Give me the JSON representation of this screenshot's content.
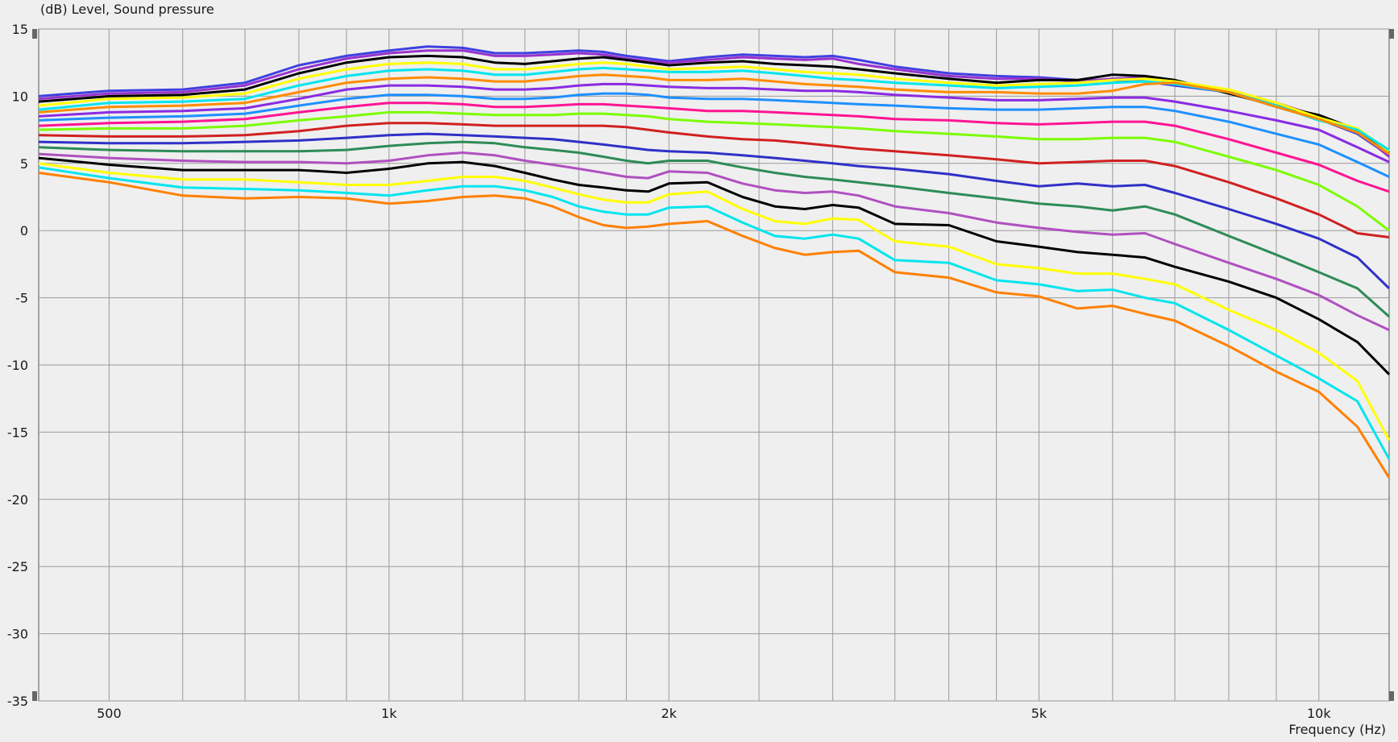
{
  "chart_data": {
    "type": "line",
    "ylabel": "(dB)  Level, Sound pressure",
    "xlabel": "Frequency  (Hz)",
    "x_scale": "log",
    "xlim": [
      420,
      11900
    ],
    "ylim": [
      -35,
      15
    ],
    "grid": true,
    "y_ticks": [
      15,
      10,
      5,
      0,
      -5,
      -10,
      -15,
      -20,
      -25,
      -30,
      -35
    ],
    "x_major_ticks": [
      {
        "value": 500,
        "label": "500"
      },
      {
        "value": 1000,
        "label": "1k"
      },
      {
        "value": 2000,
        "label": "2k"
      },
      {
        "value": 5000,
        "label": "5k"
      },
      {
        "value": 10000,
        "label": "10k"
      }
    ],
    "x_gridlines": [
      500,
      600,
      700,
      800,
      900,
      1000,
      1200,
      1400,
      1600,
      1800,
      2000,
      2500,
      3000,
      3500,
      4000,
      4500,
      5000,
      6000,
      7000,
      8000,
      9000,
      10000
    ],
    "x": [
      420,
      500,
      600,
      700,
      800,
      900,
      1000,
      1100,
      1200,
      1300,
      1400,
      1500,
      1600,
      1700,
      1800,
      1900,
      2000,
      2200,
      2400,
      2600,
      2800,
      3000,
      3200,
      3500,
      4000,
      4500,
      5000,
      5500,
      6000,
      6500,
      7000,
      8000,
      9000,
      10000,
      11000,
      11900
    ],
    "series": [
      {
        "color": "#4040e0",
        "values": [
          10,
          10.4,
          10.5,
          11,
          12.3,
          13,
          13.4,
          13.7,
          13.6,
          13.2,
          13.2,
          13.3,
          13.4,
          13.3,
          13,
          12.8,
          12.6,
          12.9,
          13.1,
          13,
          12.9,
          13,
          12.7,
          12.2,
          11.7,
          11.5,
          11.4,
          11.2,
          11.2,
          11.1,
          10.8,
          10.3,
          9.2,
          8.3,
          7.2,
          5.6
        ]
      },
      {
        "color": "#9932cc",
        "values": [
          9.8,
          10.2,
          10.3,
          10.8,
          12,
          12.8,
          13.2,
          13.4,
          13.4,
          13,
          13,
          13.1,
          13.2,
          13.1,
          12.8,
          12.6,
          12.5,
          12.7,
          12.9,
          12.8,
          12.7,
          12.8,
          12.4,
          12,
          11.5,
          11.3,
          11.3,
          11.1,
          11.3,
          11.4,
          11,
          10.3,
          9.5,
          8.5,
          7.4,
          5.5
        ]
      },
      {
        "color": "#000000",
        "values": [
          9.6,
          10,
          10.1,
          10.5,
          11.7,
          12.5,
          12.9,
          13,
          12.9,
          12.5,
          12.4,
          12.6,
          12.8,
          12.9,
          12.7,
          12.5,
          12.3,
          12.5,
          12.6,
          12.4,
          12.3,
          12.2,
          12,
          11.7,
          11.3,
          11,
          11.2,
          11.2,
          11.6,
          11.5,
          11.2,
          10.2,
          9.3,
          8.6,
          7.5,
          5.8
        ]
      },
      {
        "color": "#ffff00",
        "values": [
          9.3,
          9.8,
          9.9,
          10.2,
          11.3,
          12,
          12.4,
          12.5,
          12.4,
          12,
          12,
          12.2,
          12.4,
          12.5,
          12.4,
          12.2,
          12,
          12.1,
          12.2,
          12,
          11.8,
          11.7,
          11.6,
          11.3,
          11,
          10.8,
          10.9,
          11,
          11.2,
          11.3,
          11.1,
          10.5,
          9.5,
          8.4,
          7.6,
          5.9
        ]
      },
      {
        "color": "#00e5ee",
        "values": [
          9,
          9.5,
          9.6,
          9.8,
          10.8,
          11.5,
          11.9,
          12,
          11.9,
          11.6,
          11.6,
          11.8,
          12,
          12.1,
          12,
          11.9,
          11.8,
          11.8,
          11.9,
          11.7,
          11.5,
          11.3,
          11.2,
          11,
          10.8,
          10.6,
          10.7,
          10.8,
          11,
          11.1,
          10.9,
          10.3,
          9.3,
          8.2,
          7.5,
          6
        ]
      },
      {
        "color": "#ff8c00",
        "values": [
          8.8,
          9.2,
          9.3,
          9.5,
          10.3,
          11,
          11.3,
          11.4,
          11.3,
          11.1,
          11.1,
          11.3,
          11.5,
          11.6,
          11.5,
          11.4,
          11.2,
          11.2,
          11.3,
          11.1,
          10.9,
          10.8,
          10.7,
          10.5,
          10.3,
          10.3,
          10.2,
          10.2,
          10.4,
          10.9,
          11,
          10.3,
          9.2,
          8.3,
          7.3,
          5.7
        ]
      },
      {
        "color": "#8a2be2",
        "values": [
          8.5,
          8.8,
          8.9,
          9.1,
          9.8,
          10.5,
          10.8,
          10.8,
          10.7,
          10.5,
          10.5,
          10.6,
          10.8,
          10.9,
          10.9,
          10.8,
          10.7,
          10.6,
          10.6,
          10.5,
          10.4,
          10.4,
          10.3,
          10.1,
          9.9,
          9.7,
          9.7,
          9.8,
          9.9,
          9.9,
          9.6,
          8.9,
          8.2,
          7.5,
          6.2,
          5.1
        ]
      },
      {
        "color": "#1e90ff",
        "values": [
          8.2,
          8.4,
          8.5,
          8.7,
          9.3,
          9.8,
          10.1,
          10.1,
          10,
          9.8,
          9.8,
          9.9,
          10.1,
          10.2,
          10.2,
          10.1,
          9.9,
          9.8,
          9.8,
          9.7,
          9.6,
          9.5,
          9.4,
          9.3,
          9.1,
          9,
          9,
          9.1,
          9.2,
          9.2,
          8.9,
          8.1,
          7.2,
          6.4,
          5.1,
          4
        ]
      },
      {
        "color": "#ff1493",
        "values": [
          7.8,
          8,
          8.1,
          8.3,
          8.8,
          9.2,
          9.5,
          9.5,
          9.4,
          9.2,
          9.2,
          9.3,
          9.4,
          9.4,
          9.3,
          9.2,
          9.1,
          8.9,
          8.9,
          8.8,
          8.7,
          8.6,
          8.5,
          8.3,
          8.2,
          8,
          7.9,
          8,
          8.1,
          8.1,
          7.8,
          6.8,
          5.8,
          4.9,
          3.7,
          2.9
        ]
      },
      {
        "color": "#7cfc00",
        "values": [
          7.5,
          7.6,
          7.6,
          7.8,
          8.2,
          8.5,
          8.8,
          8.8,
          8.7,
          8.6,
          8.6,
          8.6,
          8.7,
          8.7,
          8.6,
          8.5,
          8.3,
          8.1,
          8,
          7.9,
          7.8,
          7.7,
          7.6,
          7.4,
          7.2,
          7,
          6.8,
          6.8,
          6.9,
          6.9,
          6.6,
          5.5,
          4.5,
          3.4,
          1.8,
          0
        ]
      },
      {
        "color": "#d02020",
        "values": [
          7.1,
          7,
          7,
          7.1,
          7.4,
          7.8,
          8,
          8,
          7.9,
          7.8,
          7.8,
          7.8,
          7.8,
          7.8,
          7.7,
          7.5,
          7.3,
          7,
          6.8,
          6.7,
          6.5,
          6.3,
          6.1,
          5.9,
          5.6,
          5.3,
          5,
          5.1,
          5.2,
          5.2,
          4.8,
          3.6,
          2.4,
          1.2,
          -0.2,
          -0.5
        ]
      },
      {
        "color": "#3030c8",
        "values": [
          6.6,
          6.5,
          6.5,
          6.6,
          6.7,
          6.9,
          7.1,
          7.2,
          7.1,
          7,
          6.9,
          6.8,
          6.6,
          6.4,
          6.2,
          6,
          5.9,
          5.8,
          5.6,
          5.4,
          5.2,
          5,
          4.8,
          4.6,
          4.2,
          3.7,
          3.3,
          3.5,
          3.3,
          3.4,
          2.8,
          1.6,
          0.5,
          -0.6,
          -2,
          -4.3
        ]
      },
      {
        "color": "#2e8b57",
        "values": [
          6.2,
          6,
          5.9,
          5.9,
          5.9,
          6,
          6.3,
          6.5,
          6.6,
          6.5,
          6.2,
          6,
          5.8,
          5.5,
          5.2,
          5,
          5.2,
          5.2,
          4.7,
          4.3,
          4,
          3.8,
          3.6,
          3.3,
          2.8,
          2.4,
          2,
          1.8,
          1.5,
          1.8,
          1.2,
          -0.4,
          -1.8,
          -3.1,
          -4.3,
          -6.4
        ]
      },
      {
        "color": "#b050c0",
        "values": [
          5.7,
          5.4,
          5.2,
          5.1,
          5.1,
          5,
          5.2,
          5.6,
          5.8,
          5.6,
          5.2,
          4.9,
          4.6,
          4.3,
          4,
          3.9,
          4.4,
          4.3,
          3.5,
          3,
          2.8,
          2.9,
          2.6,
          1.8,
          1.3,
          0.6,
          0.2,
          -0.1,
          -0.3,
          -0.2,
          -1,
          -2.4,
          -3.6,
          -4.8,
          -6.3,
          -7.4
        ]
      },
      {
        "color": "#000000",
        "values": [
          5.4,
          4.9,
          4.5,
          4.5,
          4.5,
          4.3,
          4.6,
          5,
          5.1,
          4.8,
          4.3,
          3.8,
          3.4,
          3.2,
          3,
          2.9,
          3.5,
          3.6,
          2.5,
          1.8,
          1.6,
          1.9,
          1.7,
          0.5,
          0.4,
          -0.8,
          -1.2,
          -1.6,
          -1.8,
          -2,
          -2.7,
          -3.8,
          -5,
          -6.6,
          -8.3,
          -10.7
        ]
      },
      {
        "color": "#ffff00",
        "values": [
          5,
          4.3,
          3.8,
          3.8,
          3.6,
          3.4,
          3.4,
          3.7,
          4,
          4,
          3.7,
          3.2,
          2.7,
          2.3,
          2.1,
          2.1,
          2.7,
          2.9,
          1.6,
          0.7,
          0.5,
          0.9,
          0.8,
          -0.8,
          -1.2,
          -2.5,
          -2.8,
          -3.2,
          -3.2,
          -3.6,
          -4,
          -5.9,
          -7.4,
          -9.1,
          -11.2,
          -15.6
        ]
      },
      {
        "color": "#00e5ee",
        "values": [
          4.7,
          3.9,
          3.2,
          3.1,
          3,
          2.8,
          2.6,
          3,
          3.3,
          3.3,
          3,
          2.5,
          1.8,
          1.4,
          1.2,
          1.2,
          1.7,
          1.8,
          0.6,
          -0.4,
          -0.6,
          -0.3,
          -0.6,
          -2.2,
          -2.4,
          -3.7,
          -4,
          -4.5,
          -4.4,
          -5,
          -5.4,
          -7.4,
          -9.3,
          -11,
          -12.7,
          -17
        ]
      },
      {
        "color": "#ff8000",
        "values": [
          4.3,
          3.6,
          2.6,
          2.4,
          2.5,
          2.4,
          2,
          2.2,
          2.5,
          2.6,
          2.4,
          1.8,
          1,
          0.4,
          0.2,
          0.3,
          0.5,
          0.7,
          -0.4,
          -1.3,
          -1.8,
          -1.6,
          -1.5,
          -3.1,
          -3.5,
          -4.6,
          -4.9,
          -5.8,
          -5.6,
          -6.2,
          -6.7,
          -8.6,
          -10.5,
          -12,
          -14.6,
          -18.4
        ]
      }
    ]
  }
}
